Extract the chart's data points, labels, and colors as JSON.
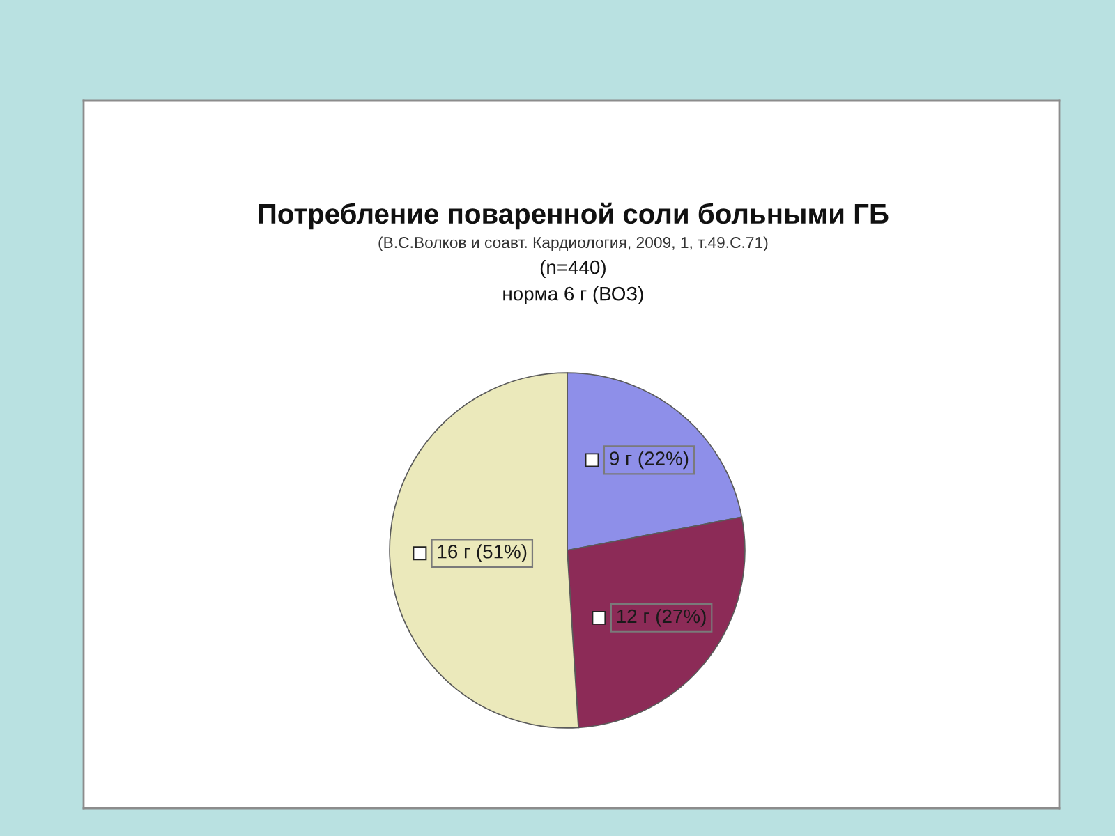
{
  "chart_data": {
    "type": "pie",
    "title": "Потребление поваренной соли больными ГБ",
    "subtitle": "(В.С.Волков и соавт. Кардиология, 2009, 1, т.49.С.71)",
    "annotations": [
      "(n=440)",
      "норма 6 г (ВОЗ)"
    ],
    "categories": [
      "9 г",
      "12 г",
      "16 г"
    ],
    "values": [
      22,
      27,
      51
    ],
    "value_labels": [
      "(22%)",
      "(27%)",
      "(51%)"
    ],
    "colors": [
      "#8e8fe9",
      "#8c2b57",
      "#ebe9bb"
    ],
    "legend": false
  }
}
